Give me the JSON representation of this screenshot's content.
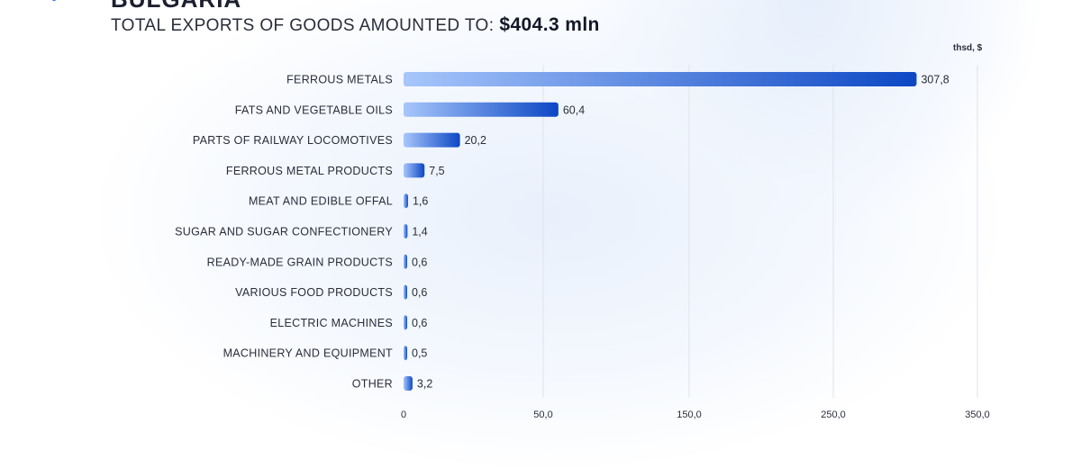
{
  "header": {
    "country": "BULGARIA",
    "subtitle": "TOTAL EXPORTS OF GOODS AMOUNTED TO:",
    "total": "$404.3 mln",
    "unit": "thsd, $"
  },
  "colors": {
    "bar_start": "#a7c6fb",
    "bar_end": "#0c47c4",
    "grid": "#dfe3ea",
    "text": "#2a2d3a"
  },
  "chart_data": {
    "type": "bar",
    "orientation": "horizontal",
    "scale": "broken",
    "categories": [
      "FERROUS METALS",
      "FATS AND VEGETABLE OILS",
      "PARTS OF RAILWAY LOCOMOTIVES",
      "FERROUS METAL PRODUCTS",
      "MEAT AND EDIBLE OFFAL",
      "SUGAR AND SUGAR CONFECTIONERY",
      "READY-MADE GRAIN PRODUCTS",
      "VARIOUS FOOD PRODUCTS",
      "ELECTRIC MACHINES",
      "MACHINERY AND EQUIPMENT",
      "OTHER"
    ],
    "values": [
      307.8,
      60.4,
      20.2,
      7.5,
      1.6,
      1.4,
      0.6,
      0.6,
      0.6,
      0.5,
      3.2
    ],
    "value_labels": [
      "307,8",
      "60,4",
      "20,2",
      "7,5",
      "1,6",
      "1,4",
      "0,6",
      "0,6",
      "0,6",
      "0,5",
      "3,2"
    ],
    "x_ticks": [
      0,
      50,
      150,
      250,
      350
    ],
    "x_tick_labels": [
      "0",
      "50,0",
      "150,0",
      "250,0",
      "350,0"
    ],
    "xlim": [
      0,
      350
    ],
    "grid": true,
    "xlabel": "",
    "ylabel": ""
  }
}
